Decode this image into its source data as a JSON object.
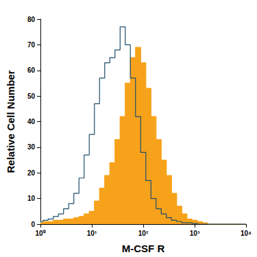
{
  "chart_data": {
    "type": "line",
    "xlabel": "M-CSF R",
    "ylabel": "Relative Cell Number",
    "x": [
      1,
      1.259,
      1.585,
      1.995,
      2.512,
      3.162,
      3.981,
      5.012,
      6.31,
      7.943,
      10,
      12.59,
      15.85,
      19.95,
      25.12,
      31.62,
      39.81,
      50.12,
      63.1,
      79.43,
      100,
      125.9,
      158.5,
      199.5,
      251.2,
      316.2,
      398.1,
      501.2,
      631,
      794.3,
      1000,
      1259,
      1585,
      1995,
      2512,
      3162,
      3981,
      5012,
      6310,
      7943,
      10000
    ],
    "series": [
      {
        "type": "area",
        "color": "#f7a21b",
        "values": [
          0.5,
          1,
          1,
          1.5,
          1.5,
          2,
          2,
          2.5,
          3,
          4,
          5,
          9,
          14,
          19,
          24,
          33,
          42,
          55,
          65,
          69,
          63,
          53,
          42,
          33,
          25,
          19,
          12,
          7,
          4,
          2,
          1.5,
          1,
          0.5,
          0,
          0,
          0,
          0,
          0,
          0,
          0,
          0
        ]
      },
      {
        "type": "line",
        "color": "#1e4d6b",
        "values": [
          1,
          1.5,
          2,
          3,
          4,
          6,
          8,
          12,
          18,
          27,
          35,
          47,
          57,
          63,
          65,
          68,
          77,
          70,
          57,
          42,
          28,
          17,
          10,
          6,
          4,
          2.5,
          1.5,
          1,
          0.5,
          0.5,
          0.3,
          0,
          0,
          0,
          0,
          0,
          0,
          0,
          0,
          0,
          0
        ]
      }
    ],
    "xlim": [
      1,
      10000
    ],
    "xticks": [
      {
        "value": 1,
        "label": "10⁰"
      },
      {
        "value": 10,
        "label": "10¹"
      },
      {
        "value": 100,
        "label": "10²"
      },
      {
        "value": 1000,
        "label": "10³"
      },
      {
        "value": 10000,
        "label": "10⁴"
      }
    ],
    "ylim": [
      0,
      80
    ],
    "yticks": [
      0,
      10,
      20,
      30,
      40,
      50,
      60,
      70,
      80
    ],
    "log": "x",
    "grid": false,
    "line_style": "step"
  }
}
